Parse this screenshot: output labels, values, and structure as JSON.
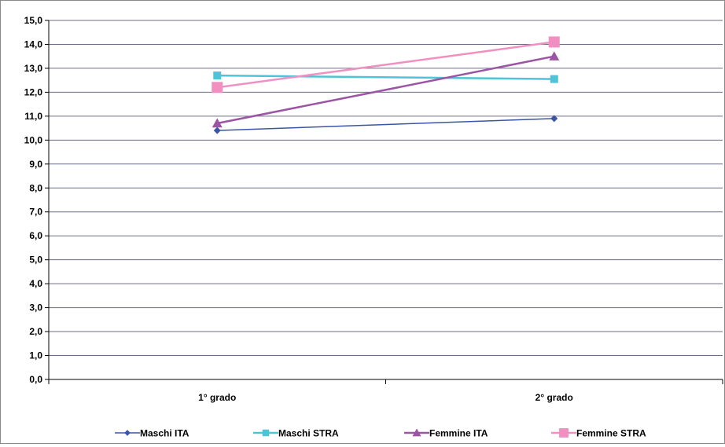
{
  "chart_data": {
    "type": "line",
    "categories": [
      "1° grado",
      "2° grado"
    ],
    "y_ticks": [
      "0,0",
      "1,0",
      "2,0",
      "3,0",
      "4,0",
      "5,0",
      "6,0",
      "7,0",
      "8,0",
      "9,0",
      "10,0",
      "11,0",
      "12,0",
      "13,0",
      "14,0",
      "15,0"
    ],
    "ylim": [
      0,
      15
    ],
    "grid": true,
    "legend_position": "bottom",
    "series": [
      {
        "name": "Maschi ITA",
        "values": [
          10.4,
          10.9
        ],
        "color": "#3b55a6",
        "marker": "diamond"
      },
      {
        "name": "Maschi STRA",
        "values": [
          12.7,
          12.55
        ],
        "color": "#4fc4d8",
        "marker": "square"
      },
      {
        "name": "Femmine ITA",
        "values": [
          10.7,
          13.5
        ],
        "color": "#9b55a3",
        "marker": "triangle"
      },
      {
        "name": "Femmine STRA",
        "values": [
          12.2,
          14.1
        ],
        "color": "#f08fc0",
        "marker": "square-large"
      }
    ]
  }
}
